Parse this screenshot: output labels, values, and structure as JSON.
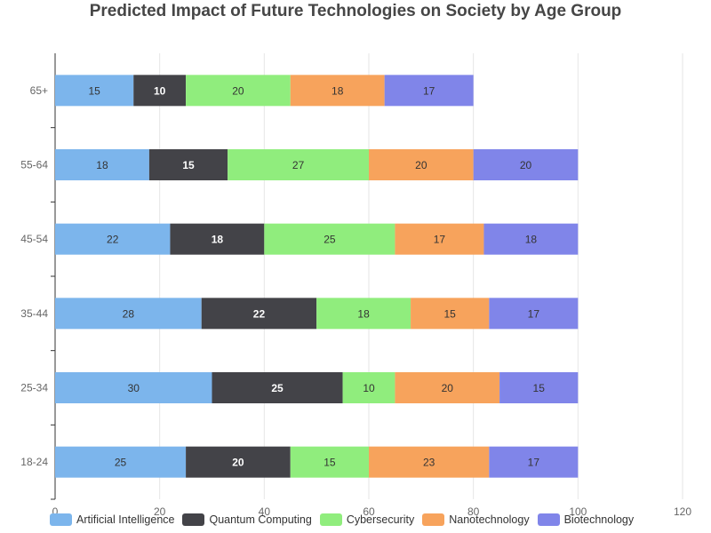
{
  "chart_data": {
    "type": "bar",
    "orientation": "horizontal",
    "stacked": true,
    "title": "Predicted Impact of Future Technologies on Society by Age Group",
    "categories": [
      "18-24",
      "25-34",
      "35-44",
      "45-54",
      "55-64",
      "65+"
    ],
    "series": [
      {
        "name": "Artificial Intelligence",
        "color": "#7cb5ec",
        "values": [
          25,
          30,
          28,
          22,
          18,
          15
        ]
      },
      {
        "name": "Quantum Computing",
        "color": "#434348",
        "values": [
          20,
          25,
          22,
          18,
          15,
          10
        ]
      },
      {
        "name": "Cybersecurity",
        "color": "#90ed7d",
        "values": [
          15,
          10,
          18,
          25,
          27,
          20
        ]
      },
      {
        "name": "Nanotechnology",
        "color": "#f7a35c",
        "values": [
          23,
          20,
          15,
          17,
          20,
          18
        ]
      },
      {
        "name": "Biotechnology",
        "color": "#8085e9",
        "values": [
          17,
          15,
          17,
          18,
          20,
          17
        ]
      }
    ],
    "xlim": [
      0,
      120
    ],
    "x_ticks": [
      0,
      20,
      40,
      60,
      80,
      100,
      120
    ],
    "grid": true,
    "legend_position": "bottom-left",
    "data_labels": true
  }
}
